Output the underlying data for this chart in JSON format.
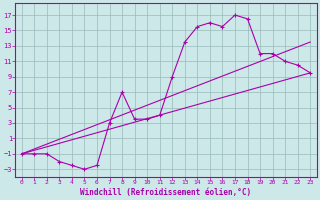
{
  "xlabel": "Windchill (Refroidissement éolien,°C)",
  "bg_color": "#cce8e8",
  "line_color": "#aa00aa",
  "grid_color": "#99bbbb",
  "xlim": [
    -0.5,
    23.5
  ],
  "ylim": [
    -4,
    18.5
  ],
  "xticks": [
    0,
    1,
    2,
    3,
    4,
    5,
    6,
    7,
    8,
    9,
    10,
    11,
    12,
    13,
    14,
    15,
    16,
    17,
    18,
    19,
    20,
    21,
    22,
    23
  ],
  "yticks": [
    -3,
    -1,
    1,
    3,
    5,
    7,
    9,
    11,
    13,
    15,
    17
  ],
  "curve_x": [
    0,
    1,
    2,
    3,
    4,
    5,
    6,
    7,
    8,
    9,
    10,
    11,
    12,
    13,
    14,
    15,
    16,
    17,
    18,
    19,
    20,
    21,
    22,
    23
  ],
  "curve_y": [
    -1,
    -1,
    -1,
    -2,
    -2.5,
    -3,
    -2.5,
    3,
    7,
    3.5,
    3.5,
    4,
    9,
    13.5,
    15.5,
    16,
    15.5,
    17,
    16.5,
    12,
    12,
    11,
    10.5,
    9.5
  ],
  "line1_x": [
    0,
    23
  ],
  "line1_y": [
    -1,
    9.5
  ],
  "line2_x": [
    0,
    23
  ],
  "line2_y": [
    -1,
    13.5
  ]
}
